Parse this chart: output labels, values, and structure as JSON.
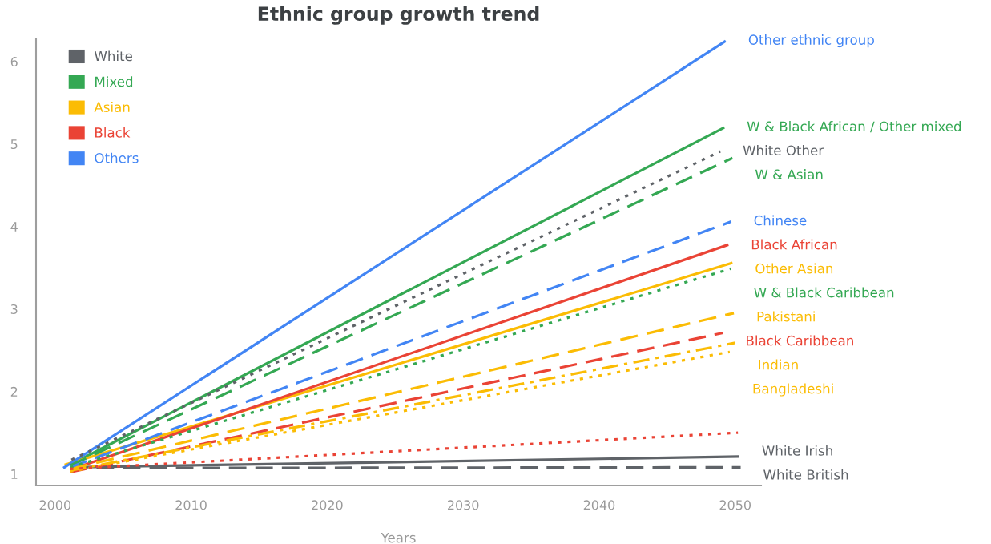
{
  "chart_data": {
    "type": "line",
    "title": "Ethnic group growth trend",
    "xlabel": "Years",
    "xlim": [
      1998.6,
      2051.9
    ],
    "xticks": [
      2000,
      2010,
      2020,
      2030,
      2040,
      2050
    ],
    "ylim": [
      0.86,
      6.28
    ],
    "yticks": [
      1,
      2,
      3,
      4,
      5,
      6
    ],
    "grid": false,
    "legend": "top left",
    "series": [
      {
        "name": "White",
        "color": "#5f6368",
        "line_style": "solid",
        "x": [
          2001.1,
          2050.3
        ],
        "values": [
          1.08,
          1.21
        ]
      },
      {
        "color": "#5f6368",
        "line_style": "dashed",
        "x": [
          2001.1,
          2050.4
        ],
        "values": [
          1.07,
          1.08
        ]
      },
      {
        "color": "#5f6368",
        "line_style": "dotted",
        "x": [
          2001.2,
          2048.9
        ],
        "values": [
          1.17,
          4.91
        ]
      },
      {
        "name": "Mixed",
        "color": "#34a853",
        "line_style": "solid",
        "x": [
          2001.1,
          2049.2
        ],
        "values": [
          1.11,
          5.2
        ]
      },
      {
        "color": "#34a853",
        "line_style": "dashed",
        "x": [
          2001.1,
          2049.8
        ],
        "values": [
          1.1,
          4.83
        ]
      },
      {
        "color": "#34a853",
        "line_style": "dotted",
        "x": [
          2001.1,
          2049.7
        ],
        "values": [
          1.08,
          3.49
        ]
      },
      {
        "name": "Asian",
        "color": "#fbbc04",
        "line_style": "solid",
        "x": [
          2000.7,
          2049.8
        ],
        "values": [
          1.11,
          3.56
        ]
      },
      {
        "color": "#fbbc04",
        "line_style": "dashed",
        "x": [
          2001.1,
          2049.9
        ],
        "values": [
          1.06,
          2.95
        ]
      },
      {
        "color": "#fbbc04",
        "line_style": "dashdot",
        "x": [
          2001.1,
          2050.0
        ],
        "values": [
          1.04,
          2.59
        ]
      },
      {
        "color": "#fbbc04",
        "line_style": "dotted",
        "x": [
          2001.1,
          2049.6
        ],
        "values": [
          1.03,
          2.48
        ]
      },
      {
        "name": "Black",
        "color": "#ea4335",
        "line_style": "dotted",
        "x": [
          2001.1,
          2050.2
        ],
        "values": [
          1.06,
          1.5
        ]
      },
      {
        "color": "#ea4335",
        "line_style": "solid",
        "x": [
          2001.1,
          2049.5
        ],
        "values": [
          1.05,
          3.78
        ]
      },
      {
        "color": "#ea4335",
        "line_style": "dashed",
        "x": [
          2001.1,
          2049.1
        ],
        "values": [
          1.02,
          2.71
        ]
      },
      {
        "name": "Others",
        "color": "#4285f4",
        "line_style": "solid",
        "x": [
          2000.6,
          2049.3
        ],
        "values": [
          1.07,
          6.25
        ]
      },
      {
        "color": "#4285f4",
        "line_style": "dashed",
        "x": [
          2001.1,
          2049.7
        ],
        "values": [
          1.08,
          4.06
        ]
      }
    ],
    "annotations": [
      {
        "text": "Other ethnic group",
        "x": 2049.3,
        "y": 6.25
      },
      {
        "text": "W & Black African / Other mixed",
        "x": 2049.2,
        "y": 5.2
      },
      {
        "text": "White Other",
        "x": 2048.9,
        "y": 4.91
      },
      {
        "text": "W & Asian",
        "x": 2049.8,
        "y": 4.83
      },
      {
        "text": "Chinese",
        "x": 2049.7,
        "y": 4.06
      },
      {
        "text": "Black African",
        "x": 2049.5,
        "y": 3.78
      },
      {
        "text": "Other Asian",
        "x": 2049.8,
        "y": 3.56
      },
      {
        "text": "W & Black Caribbean",
        "x": 2049.7,
        "y": 3.49
      },
      {
        "text": "Pakistani",
        "x": 2049.9,
        "y": 2.95
      },
      {
        "text": "Black Caribbean",
        "x": 2049.1,
        "y": 2.71
      },
      {
        "text": "Indian",
        "x": 2050.0,
        "y": 2.59
      },
      {
        "text": "Bangladeshi",
        "x": 2049.6,
        "y": 2.48
      },
      {
        "text": "White Irish",
        "x": 2050.3,
        "y": 1.21
      },
      {
        "text": "White British",
        "x": 2050.4,
        "y": 1.08
      }
    ]
  }
}
